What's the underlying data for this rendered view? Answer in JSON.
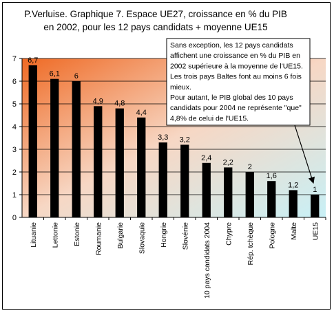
{
  "chart_data": {
    "type": "bar",
    "title_lines": [
      "P.Verluise. Graphique 7. Espace UE27, croissance en % du PIB",
      "en 2002, pour les 12 pays candidats + moyenne UE15"
    ],
    "categories": [
      "Lituanie",
      "Lettonie",
      "Estonie",
      "Roumanie",
      "Bulgarie",
      "Slovaquie",
      "Hongrie",
      "Slovénie",
      "10 pays candidats 2004",
      "Chypre",
      "Rép. tchèque",
      "Pologne",
      "Malte",
      "UE15"
    ],
    "values": [
      6.7,
      6.1,
      6,
      4.9,
      4.8,
      4.4,
      3.3,
      3.2,
      2.4,
      2.2,
      2,
      1.6,
      1.2,
      1
    ],
    "value_labels": [
      "6,7",
      "6,1",
      "6",
      "4,9",
      "4,8",
      "4,4",
      "3,3",
      "3,2",
      "2,4",
      "2,2",
      "2",
      "1,6",
      "1,2",
      "1"
    ],
    "ylim": [
      0,
      7
    ],
    "yticks": [
      0,
      1,
      2,
      3,
      4,
      5,
      6,
      7
    ],
    "grid": true,
    "bar_color": "#000000",
    "plot_background": {
      "gradient_from": "#ef6a24",
      "gradient_mid": "#f7d7c4",
      "gradient_to": "#c8f0f6"
    },
    "annotation": {
      "lines": [
        "Sans exception, les 12 pays candidats",
        "affichent une croissance en % du PIB en",
        "2002 supérieure à la moyenne de l'UE15.",
        "Les trois pays Baltes font au moins 6 fois",
        "mieux.",
        "Pour autant, le PIB global des 10 pays",
        "candidats pour 2004 ne représente \"que\"",
        "4,8% de celui de l'UE15."
      ],
      "points_to": "UE15"
    }
  }
}
